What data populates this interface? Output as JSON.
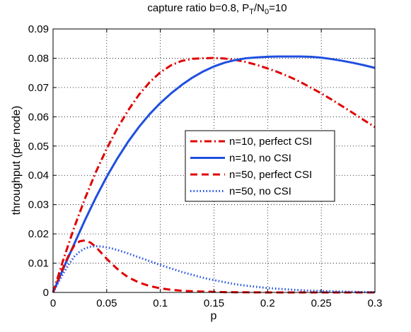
{
  "chart_data": {
    "type": "line",
    "title": {
      "prefix": "capture ratio b=0.8, P",
      "sub1": "T",
      "mid": "/N",
      "sub2": "0",
      "suffix": "=10"
    },
    "xlabel": "p",
    "ylabel": "throughput (per node)",
    "xlim": [
      0,
      0.3
    ],
    "ylim": [
      0,
      0.09
    ],
    "x_ticks": [
      "0",
      "0.05",
      "0.1",
      "0.15",
      "0.2",
      "0.25",
      "0.3"
    ],
    "y_ticks": [
      "0",
      "0.01",
      "0.02",
      "0.03",
      "0.04",
      "0.05",
      "0.06",
      "0.07",
      "0.08",
      "0.09"
    ],
    "grid": true,
    "legend_position": "center-right",
    "series": [
      {
        "name": "n=10, perfect CSI",
        "color": "#e00000",
        "line_style": "dash-dot",
        "x": [
          0,
          0.01,
          0.02,
          0.03,
          0.04,
          0.05,
          0.06,
          0.07,
          0.08,
          0.09,
          0.1,
          0.11,
          0.12,
          0.13,
          0.14,
          0.15,
          0.16,
          0.17,
          0.18,
          0.19,
          0.2,
          0.21,
          0.22,
          0.23,
          0.24,
          0.25,
          0.26,
          0.27,
          0.28,
          0.29,
          0.3
        ],
        "y": [
          0,
          0.0117,
          0.0225,
          0.0323,
          0.0412,
          0.0491,
          0.0561,
          0.0622,
          0.0675,
          0.0718,
          0.0752,
          0.0776,
          0.0791,
          0.0798,
          0.08,
          0.0801,
          0.0799,
          0.0794,
          0.0787,
          0.0777,
          0.0765,
          0.0752,
          0.0737,
          0.072,
          0.07,
          0.068,
          0.0658,
          0.0635,
          0.0612,
          0.0588,
          0.0565
        ]
      },
      {
        "name": "n=10, no CSI",
        "color": "#1f4fe0",
        "line_style": "solid",
        "x": [
          0,
          0.01,
          0.02,
          0.03,
          0.04,
          0.05,
          0.06,
          0.07,
          0.08,
          0.09,
          0.1,
          0.11,
          0.12,
          0.13,
          0.14,
          0.15,
          0.16,
          0.17,
          0.18,
          0.19,
          0.2,
          0.21,
          0.22,
          0.23,
          0.24,
          0.25,
          0.26,
          0.27,
          0.28,
          0.29,
          0.3
        ],
        "y": [
          0,
          0.0085,
          0.0168,
          0.0249,
          0.0325,
          0.0395,
          0.0458,
          0.0515,
          0.0565,
          0.0609,
          0.0647,
          0.068,
          0.0709,
          0.0734,
          0.0755,
          0.0772,
          0.0785,
          0.0794,
          0.08,
          0.0803,
          0.0805,
          0.0806,
          0.0806,
          0.0806,
          0.0805,
          0.0802,
          0.0797,
          0.0791,
          0.0784,
          0.0776,
          0.0767
        ]
      },
      {
        "name": "n=50, perfect CSI",
        "color": "#e00000",
        "line_style": "dashed",
        "x": [
          0,
          0.005,
          0.01,
          0.015,
          0.02,
          0.025,
          0.03,
          0.035,
          0.04,
          0.045,
          0.05,
          0.055,
          0.06,
          0.065,
          0.07,
          0.08,
          0.09,
          0.1,
          0.11,
          0.12,
          0.13,
          0.14,
          0.15,
          0.16,
          0.18,
          0.2,
          0.22,
          0.24,
          0.26,
          0.28,
          0.3
        ],
        "y": [
          0,
          0.0045,
          0.009,
          0.013,
          0.0162,
          0.0175,
          0.0178,
          0.017,
          0.0155,
          0.0135,
          0.0115,
          0.0097,
          0.008,
          0.0065,
          0.0052,
          0.0034,
          0.0022,
          0.0014,
          0.0009,
          0.0006,
          0.0004,
          0.0003,
          0.0002,
          0.0001,
          5e-05,
          0,
          0,
          0,
          0,
          0,
          0
        ]
      },
      {
        "name": "n=50, no CSI",
        "color": "#1f4fe0",
        "line_style": "dotted",
        "x": [
          0,
          0.005,
          0.01,
          0.015,
          0.02,
          0.025,
          0.03,
          0.035,
          0.04,
          0.045,
          0.05,
          0.055,
          0.06,
          0.07,
          0.08,
          0.09,
          0.1,
          0.11,
          0.12,
          0.13,
          0.14,
          0.15,
          0.16,
          0.17,
          0.18,
          0.2,
          0.22,
          0.24,
          0.26,
          0.28,
          0.3
        ],
        "y": [
          0,
          0.0035,
          0.0068,
          0.0098,
          0.0123,
          0.014,
          0.0151,
          0.0156,
          0.0158,
          0.0157,
          0.0154,
          0.015,
          0.0145,
          0.0133,
          0.012,
          0.0107,
          0.0094,
          0.0082,
          0.007,
          0.006,
          0.005,
          0.0042,
          0.0035,
          0.0028,
          0.0023,
          0.0015,
          0.001,
          0.0006,
          0.0004,
          0.0002,
          0.0001
        ]
      }
    ]
  }
}
